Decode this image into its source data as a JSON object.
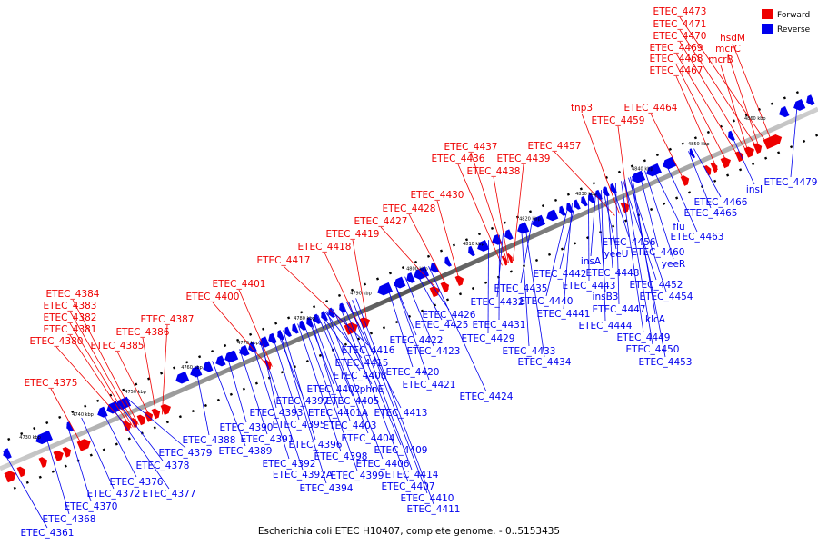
{
  "caption": "Escherichia coli ETEC H10407, complete genome. - 0..5153435",
  "legend": [
    {
      "label": "Forward",
      "color": "#ee0000"
    },
    {
      "label": "Reverse",
      "color": "#0000ee"
    }
  ],
  "colors": {
    "forward": "#ee0000",
    "reverse": "#0000ee",
    "backbone": "#666666"
  },
  "ticks": [
    "4730 kbp",
    "4740 kbp",
    "4750 kbp",
    "4760 kbp",
    "4770 kbp",
    "4780 kbp",
    "4790 kbp",
    "4800 kbp",
    "4810 kbp",
    "4820 kbp",
    "4830 kbp",
    "4840 kbp",
    "4850 kbp",
    "4860 kbp"
  ],
  "forward_labels": [
    "ETEC_4473",
    "ETEC_4471",
    "ETEC_4470",
    "ETEC_4469",
    "ETEC_4468",
    "ETEC_4467",
    "hsdM",
    "mcrC",
    "mcrB",
    "ETEC_4464",
    "tnp3",
    "ETEC_4459",
    "ETEC_4457",
    "ETEC_4437",
    "ETEC_4436",
    "ETEC_4439",
    "ETEC_4438",
    "ETEC_4430",
    "ETEC_4428",
    "ETEC_4427",
    "ETEC_4419",
    "ETEC_4418",
    "ETEC_4417",
    "ETEC_4401",
    "ETEC_4400",
    "ETEC_4384",
    "ETEC_4383",
    "ETEC_4382",
    "ETEC_4381",
    "ETEC_4380",
    "ETEC_4387",
    "ETEC_4386",
    "ETEC_4385",
    "ETEC_4375"
  ],
  "reverse_labels": [
    "ETEC_4479",
    "insI",
    "ETEC_4466",
    "ETEC_4465",
    "ETEC_4463",
    "flu",
    "ETEC_4460",
    "yeeR",
    "ETEC_4456",
    "yeeU",
    "insA",
    "ETEC_4448",
    "ETEC_4442",
    "ETEC_4443",
    "ETEC_4452",
    "insB3",
    "ETEC_4454",
    "ETEC_4440",
    "ETEC_4447",
    "ETEC_4441",
    "klcA",
    "ETEC_4444",
    "ETEC_4449",
    "ETEC_4450",
    "ETEC_4453",
    "ETEC_4435",
    "ETEC_4432",
    "ETEC_4431",
    "ETEC_4429",
    "ETEC_4433",
    "ETEC_4434",
    "ETEC_4426",
    "ETEC_4425",
    "ETEC_4422",
    "ETEC_4423",
    "ETEC_4420",
    "ETEC_4421",
    "ETEC_4424",
    "ETEC_4416",
    "ETEC_4415",
    "ETEC_4408",
    "phnE",
    "ETEC_4402",
    "ETEC_4405",
    "ETEC_4401A",
    "ETEC_4413",
    "ETEC_4403",
    "ETEC_4404",
    "ETEC_4409",
    "ETEC_4406",
    "ETEC_4414",
    "ETEC_4407",
    "ETEC_4410",
    "ETEC_4411",
    "ETEC_4397",
    "ETEC_4393",
    "ETEC_4395",
    "ETEC_4396",
    "ETEC_4398",
    "ETEC_4399",
    "ETEC_4390",
    "ETEC_4391",
    "ETEC_4392",
    "ETEC_4392A",
    "ETEC_4394",
    "ETEC_4388",
    "ETEC_4389",
    "ETEC_4379",
    "ETEC_4378",
    "ETEC_4376",
    "ETEC_4377",
    "ETEC_4372",
    "ETEC_4370",
    "ETEC_4368",
    "ETEC_4361"
  ]
}
